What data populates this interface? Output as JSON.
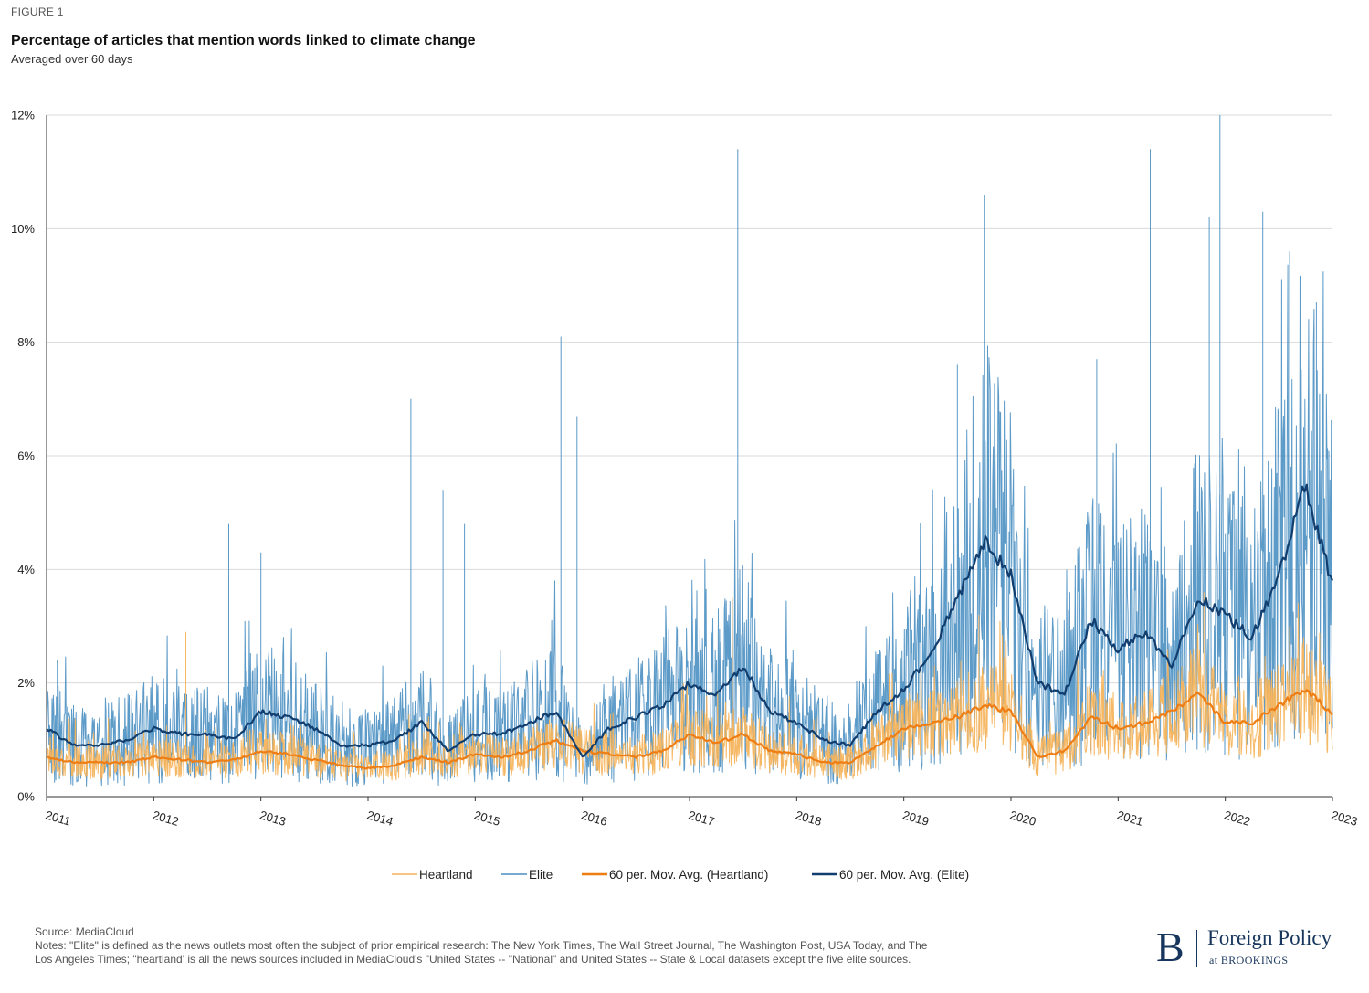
{
  "figure_label": "FIGURE 1",
  "source": "Source: MediaCloud",
  "notes": "Notes: \"Elite\" is defined as the news outlets most often the subject of prior empirical research: The New York Times, The Wall Street Journal, The Washington Post, USA Today, and The Los Angeles Times; \"heartland' is all the news sources included in MediaCloud's \"United States -- \"National\" and United States -- State & Local datasets except the five elite sources.",
  "logo": {
    "mark": "B",
    "name": "Foreign Policy",
    "sub": "at BROOKINGS"
  },
  "colors": {
    "heartland": "#f6b45c",
    "elite": "#4a8fc2",
    "ma_heartland": "#ee7d14",
    "ma_elite": "#113e6e",
    "grid": "#d9d9d9"
  },
  "chart_data": {
    "type": "line",
    "title": "Percentage of articles that mention words linked to climate change",
    "subtitle": "Averaged over 60 days",
    "xlabel": "",
    "ylabel": "",
    "x_ticks": [
      "2011",
      "2012",
      "2013",
      "2014",
      "2015",
      "2016",
      "2017",
      "2018",
      "2019",
      "2020",
      "2021",
      "2022",
      "2023"
    ],
    "xlim": [
      2011,
      2023
    ],
    "y_ticks": [
      "0%",
      "2%",
      "4%",
      "6%",
      "8%",
      "10%",
      "12%"
    ],
    "ylim": [
      0,
      12
    ],
    "grid": "horizontal",
    "legend_position": "bottom",
    "series": [
      {
        "name": "Heartland",
        "style": "daily",
        "x": [
          2011.0,
          2011.25,
          2011.5,
          2011.75,
          2012.0,
          2012.25,
          2012.5,
          2012.75,
          2013.0,
          2013.25,
          2013.5,
          2013.75,
          2014.0,
          2014.25,
          2014.5,
          2014.75,
          2015.0,
          2015.25,
          2015.5,
          2015.75,
          2016.0,
          2016.25,
          2016.5,
          2016.75,
          2017.0,
          2017.25,
          2017.5,
          2017.75,
          2018.0,
          2018.25,
          2018.5,
          2018.75,
          2019.0,
          2019.25,
          2019.5,
          2019.75,
          2020.0,
          2020.25,
          2020.5,
          2020.75,
          2021.0,
          2021.25,
          2021.5,
          2021.75,
          2022.0,
          2022.25,
          2022.5,
          2022.75,
          2023.0
        ],
        "y": [
          0.7,
          0.6,
          0.6,
          0.6,
          0.7,
          0.65,
          0.6,
          0.65,
          0.8,
          0.75,
          0.65,
          0.55,
          0.5,
          0.55,
          0.7,
          0.6,
          0.75,
          0.7,
          0.8,
          1.0,
          0.8,
          0.75,
          0.7,
          0.8,
          1.1,
          0.95,
          1.1,
          0.8,
          0.75,
          0.6,
          0.6,
          0.9,
          1.2,
          1.3,
          1.4,
          1.6,
          1.5,
          0.7,
          0.8,
          1.4,
          1.2,
          1.3,
          1.5,
          1.8,
          1.3,
          1.3,
          1.6,
          1.9,
          1.45
        ],
        "spikes": [
          [
            2012.3,
            2.9
          ],
          [
            2017.4,
            3.5
          ],
          [
            2019.7,
            3.2
          ],
          [
            2021.8,
            3.6
          ],
          [
            2022.6,
            3.0
          ]
        ]
      },
      {
        "name": "Elite",
        "style": "daily",
        "x": [
          2011.0,
          2011.25,
          2011.5,
          2011.75,
          2012.0,
          2012.25,
          2012.5,
          2012.75,
          2013.0,
          2013.25,
          2013.5,
          2013.75,
          2014.0,
          2014.25,
          2014.5,
          2014.75,
          2015.0,
          2015.25,
          2015.5,
          2015.75,
          2016.0,
          2016.25,
          2016.5,
          2016.75,
          2017.0,
          2017.25,
          2017.5,
          2017.75,
          2018.0,
          2018.25,
          2018.5,
          2018.75,
          2019.0,
          2019.25,
          2019.5,
          2019.75,
          2020.0,
          2020.25,
          2020.5,
          2020.75,
          2021.0,
          2021.25,
          2021.5,
          2021.75,
          2022.0,
          2022.25,
          2022.5,
          2022.75,
          2023.0
        ],
        "y": [
          1.2,
          0.9,
          0.9,
          1.0,
          1.2,
          1.1,
          1.1,
          1.0,
          1.5,
          1.4,
          1.2,
          0.9,
          0.9,
          1.0,
          1.3,
          0.8,
          1.1,
          1.1,
          1.3,
          1.5,
          0.7,
          1.2,
          1.4,
          1.6,
          2.0,
          1.8,
          2.3,
          1.5,
          1.3,
          1.0,
          0.9,
          1.5,
          1.9,
          2.5,
          3.5,
          4.5,
          3.9,
          2.0,
          1.8,
          3.1,
          2.6,
          2.9,
          2.3,
          3.5,
          3.2,
          2.8,
          3.9,
          5.5,
          3.7
        ],
        "spikes": [
          [
            2011.1,
            2.4
          ],
          [
            2012.7,
            4.8
          ],
          [
            2013.0,
            4.3
          ],
          [
            2014.4,
            7.0
          ],
          [
            2014.7,
            5.4
          ],
          [
            2014.9,
            4.8
          ],
          [
            2015.8,
            8.1
          ],
          [
            2015.95,
            6.7
          ],
          [
            2017.45,
            11.4
          ],
          [
            2019.5,
            7.6
          ],
          [
            2019.75,
            10.6
          ],
          [
            2020.8,
            7.7
          ],
          [
            2021.3,
            11.4
          ],
          [
            2021.85,
            10.2
          ],
          [
            2021.95,
            12.0
          ],
          [
            2022.35,
            10.3
          ],
          [
            2022.6,
            9.6
          ],
          [
            2022.85,
            8.7
          ]
        ]
      },
      {
        "name": "60 per. Mov. Avg. (Heartland)",
        "style": "average",
        "x": [
          2011.0,
          2011.25,
          2011.5,
          2011.75,
          2012.0,
          2012.25,
          2012.5,
          2012.75,
          2013.0,
          2013.25,
          2013.5,
          2013.75,
          2014.0,
          2014.25,
          2014.5,
          2014.75,
          2015.0,
          2015.25,
          2015.5,
          2015.75,
          2016.0,
          2016.25,
          2016.5,
          2016.75,
          2017.0,
          2017.25,
          2017.5,
          2017.75,
          2018.0,
          2018.25,
          2018.5,
          2018.75,
          2019.0,
          2019.25,
          2019.5,
          2019.75,
          2020.0,
          2020.25,
          2020.5,
          2020.75,
          2021.0,
          2021.25,
          2021.5,
          2021.75,
          2022.0,
          2022.25,
          2022.5,
          2022.75,
          2023.0
        ],
        "y": [
          0.7,
          0.6,
          0.6,
          0.6,
          0.7,
          0.65,
          0.6,
          0.65,
          0.8,
          0.75,
          0.65,
          0.55,
          0.5,
          0.55,
          0.7,
          0.6,
          0.75,
          0.7,
          0.8,
          1.0,
          0.8,
          0.75,
          0.7,
          0.8,
          1.1,
          0.95,
          1.1,
          0.8,
          0.75,
          0.6,
          0.6,
          0.9,
          1.2,
          1.3,
          1.4,
          1.6,
          1.5,
          0.7,
          0.8,
          1.4,
          1.2,
          1.3,
          1.5,
          1.8,
          1.3,
          1.3,
          1.6,
          1.9,
          1.45
        ]
      },
      {
        "name": "60 per. Mov. Avg. (Elite)",
        "style": "average",
        "x": [
          2011.0,
          2011.25,
          2011.5,
          2011.75,
          2012.0,
          2012.25,
          2012.5,
          2012.75,
          2013.0,
          2013.25,
          2013.5,
          2013.75,
          2014.0,
          2014.25,
          2014.5,
          2014.75,
          2015.0,
          2015.25,
          2015.5,
          2015.75,
          2016.0,
          2016.25,
          2016.5,
          2016.75,
          2017.0,
          2017.25,
          2017.5,
          2017.75,
          2018.0,
          2018.25,
          2018.5,
          2018.75,
          2019.0,
          2019.25,
          2019.5,
          2019.75,
          2020.0,
          2020.25,
          2020.5,
          2020.75,
          2021.0,
          2021.25,
          2021.5,
          2021.75,
          2022.0,
          2022.25,
          2022.5,
          2022.75,
          2023.0
        ],
        "y": [
          1.2,
          0.9,
          0.9,
          1.0,
          1.2,
          1.1,
          1.1,
          1.0,
          1.5,
          1.4,
          1.2,
          0.9,
          0.9,
          1.0,
          1.3,
          0.8,
          1.1,
          1.1,
          1.3,
          1.5,
          0.7,
          1.2,
          1.4,
          1.6,
          2.0,
          1.8,
          2.3,
          1.5,
          1.3,
          1.0,
          0.9,
          1.5,
          1.9,
          2.5,
          3.5,
          4.5,
          3.9,
          2.0,
          1.8,
          3.1,
          2.6,
          2.9,
          2.3,
          3.5,
          3.2,
          2.8,
          3.9,
          5.5,
          3.7
        ]
      }
    ]
  }
}
